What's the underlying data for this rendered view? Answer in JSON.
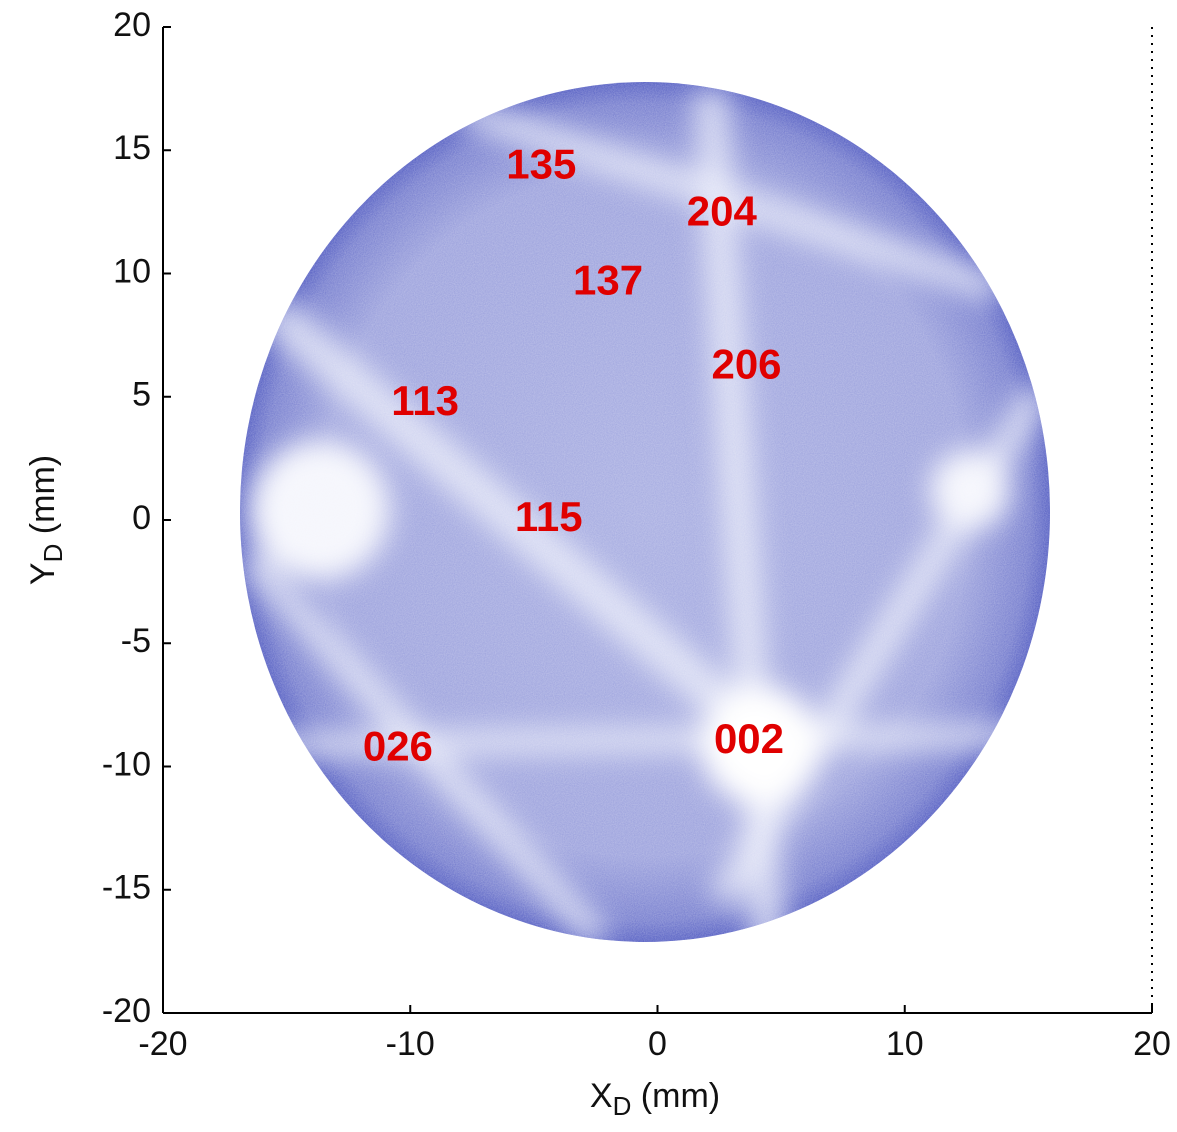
{
  "chart_data": {
    "type": "image",
    "xlabel": [
      "X",
      "D",
      " (mm)"
    ],
    "ylabel": [
      "Y",
      "D",
      " (mm)"
    ],
    "xlim": [
      -20,
      20
    ],
    "xticks": [
      -20,
      -10,
      0,
      10,
      20
    ],
    "ylim": [
      -20,
      20
    ],
    "yticks": [
      -20,
      -15,
      -10,
      -5,
      0,
      5,
      10,
      15,
      20
    ],
    "annotation_color": "#e00000",
    "annotations": [
      {
        "text": "135",
        "x": -4.7,
        "y": 14.3
      },
      {
        "text": "204",
        "x": 2.6,
        "y": 12.4
      },
      {
        "text": "137",
        "x": -2.0,
        "y": 9.6
      },
      {
        "text": "206",
        "x": 3.6,
        "y": 6.2
      },
      {
        "text": "113",
        "x": -9.4,
        "y": 4.7
      },
      {
        "text": "115",
        "x": -4.4,
        "y": 0.0
      },
      {
        "text": "026",
        "x": -10.5,
        "y": -9.3
      },
      {
        "text": "002",
        "x": 3.7,
        "y": -9.0
      }
    ]
  }
}
